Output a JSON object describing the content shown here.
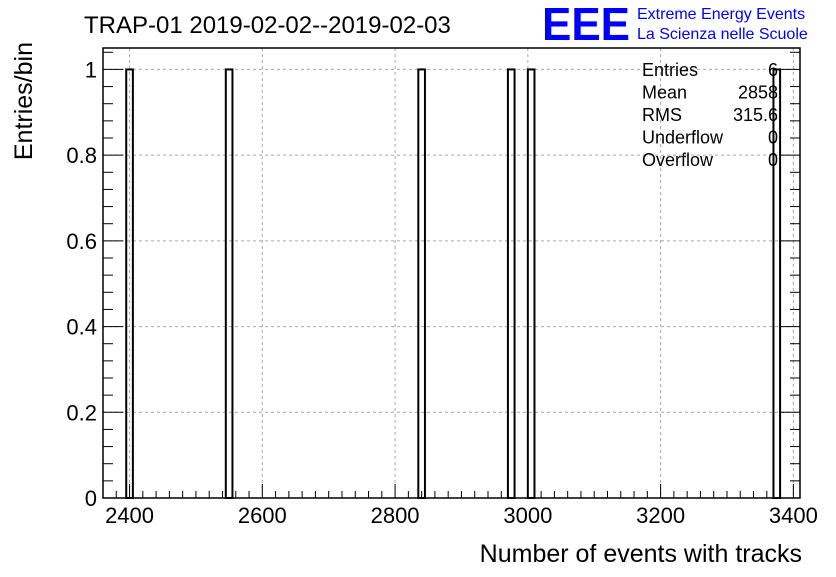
{
  "logo": {
    "letters": "EEE",
    "line1": "Extreme Energy Events",
    "line2": "La Scienza nelle Scuole",
    "color": "#0000ff"
  },
  "stats": [
    {
      "label": "Entries",
      "value": "6"
    },
    {
      "label": "Mean",
      "value": "2858"
    },
    {
      "label": "RMS",
      "value": "315.6"
    },
    {
      "label": "Underflow",
      "value": "0"
    },
    {
      "label": "Overflow",
      "value": "0"
    }
  ],
  "chart_data": {
    "type": "bar",
    "title": "TRAP-01 2019-02-02--2019-02-03",
    "xlabel": "Number of events with tracks",
    "ylabel": "Entries/bin",
    "xlim": [
      2360,
      3410
    ],
    "ylim": [
      0,
      1.05
    ],
    "x_ticks": [
      2400,
      2600,
      2800,
      3000,
      3200,
      3400
    ],
    "y_ticks": [
      0,
      0.2,
      0.4,
      0.6,
      0.8,
      1
    ],
    "y_tick_labels": [
      "0",
      "0.2",
      "0.4",
      "0.6",
      "0.8",
      "1"
    ],
    "grid": true,
    "bin_width": 10,
    "bins": [
      {
        "x": 2400,
        "value": 1
      },
      {
        "x": 2550,
        "value": 1
      },
      {
        "x": 2840,
        "value": 1
      },
      {
        "x": 2975,
        "value": 1
      },
      {
        "x": 3005,
        "value": 1
      },
      {
        "x": 3375,
        "value": 1
      }
    ]
  }
}
